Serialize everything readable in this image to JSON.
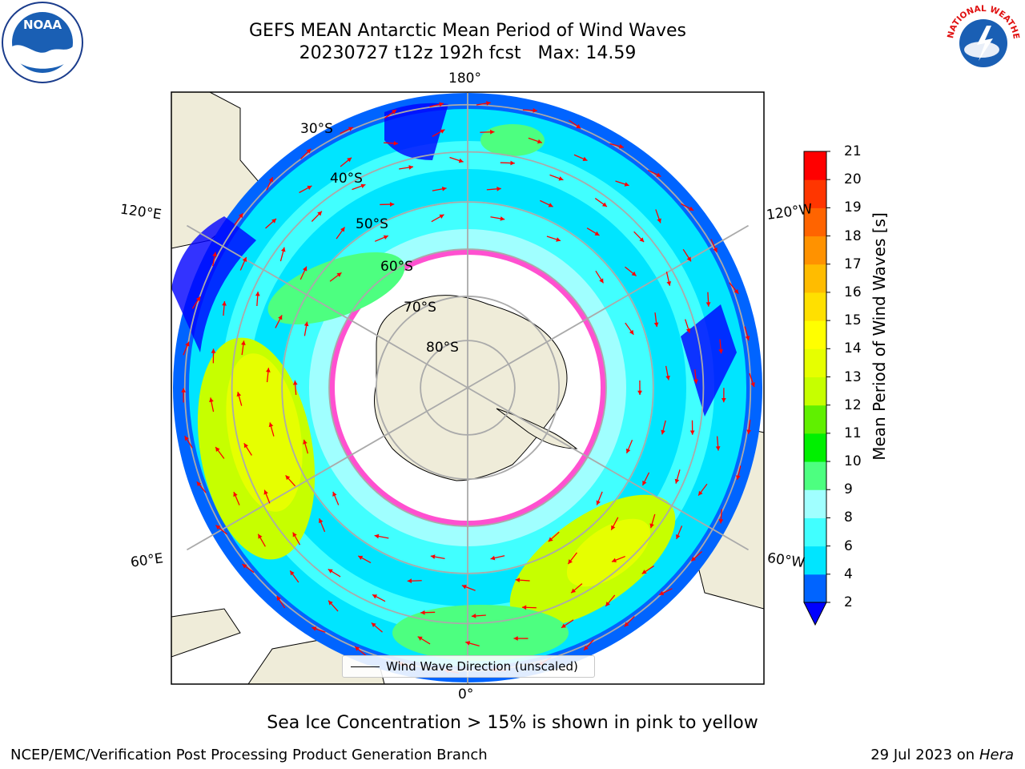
{
  "title_line1": "GEFS MEAN Antarctic Mean Period of Wind Waves",
  "title_line2": "20230727 t12z 192h fcst   Max: 14.59",
  "map": {
    "lon_labels": [
      "180°",
      "120°E",
      "120°W",
      "60°E",
      "60°W",
      "0°"
    ],
    "lat_labels": [
      "30°S",
      "40°S",
      "50°S",
      "60°S",
      "70°S",
      "80°S"
    ],
    "legend_label": "Wind Wave Direction (unscaled)"
  },
  "colorbar": {
    "label": "Mean Period of Wind Waves [s]",
    "ticks": [
      "2",
      "4",
      "6",
      "8",
      "9",
      "10",
      "11",
      "12",
      "13",
      "14",
      "15",
      "16",
      "17",
      "18",
      "19",
      "20",
      "21"
    ],
    "colors": [
      "#0064ff",
      "#00e5ff",
      "#41ffff",
      "#a0ffff",
      "#4dff80",
      "#00f000",
      "#60f000",
      "#c6ff00",
      "#e6ff00",
      "#ffff00",
      "#ffe000",
      "#ffbc00",
      "#ff9200",
      "#ff6400",
      "#ff3600",
      "#ff0000"
    ],
    "under_color": "#0000ff"
  },
  "caption": "Sea Ice Concentration > 15% is shown in pink to yellow",
  "footer_left": "NCEP/EMC/Verification Post Processing Product Generation Branch",
  "footer_right_prefix": "29 Jul 2023 on ",
  "footer_right_host": "Hera",
  "logos": {
    "noaa_text": "NOAA",
    "nws_text": "NATIONAL WEATHER SERVICE"
  }
}
